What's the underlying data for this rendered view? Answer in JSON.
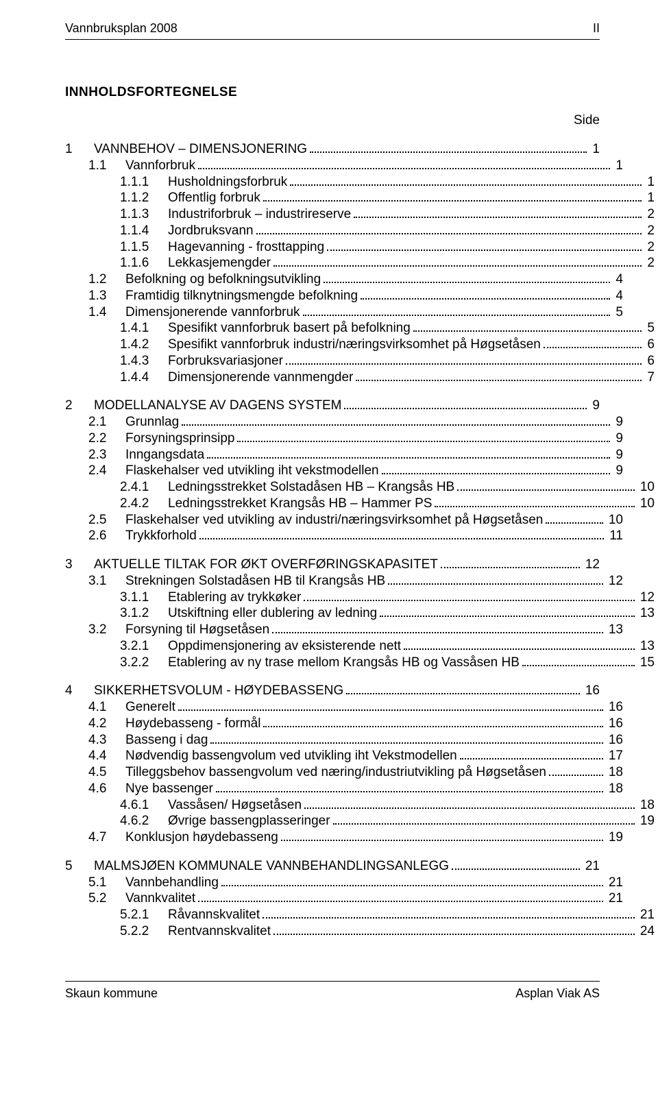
{
  "header": {
    "left": "Vannbruksplan 2008",
    "right": "II"
  },
  "titles": {
    "heading": "INNHOLDSFORTEGNELSE",
    "side": "Side"
  },
  "footer": {
    "left": "Skaun kommune",
    "right": "Asplan Viak AS"
  },
  "toc": [
    {
      "lvl": 0,
      "num": "1",
      "txt": "VANNBEHOV – DIMENSJONERING",
      "pg": "1"
    },
    {
      "lvl": 1,
      "num": "1.1",
      "txt": "Vannforbruk",
      "pg": "1"
    },
    {
      "lvl": 2,
      "num": "1.1.1",
      "txt": "Husholdningsforbruk",
      "pg": "1"
    },
    {
      "lvl": 2,
      "num": "1.1.2",
      "txt": "Offentlig forbruk",
      "pg": "1"
    },
    {
      "lvl": 2,
      "num": "1.1.3",
      "txt": "Industriforbruk – industrireserve",
      "pg": "2"
    },
    {
      "lvl": 2,
      "num": "1.1.4",
      "txt": "Jordbruksvann",
      "pg": "2"
    },
    {
      "lvl": 2,
      "num": "1.1.5",
      "txt": "Hagevanning - frosttapping",
      "pg": "2"
    },
    {
      "lvl": 2,
      "num": "1.1.6",
      "txt": "Lekkasjemengder",
      "pg": "2"
    },
    {
      "lvl": 1,
      "num": "1.2",
      "txt": "Befolkning og befolkningsutvikling",
      "pg": "4"
    },
    {
      "lvl": 1,
      "num": "1.3",
      "txt": "Framtidig tilknytningsmengde befolkning",
      "pg": "4"
    },
    {
      "lvl": 1,
      "num": "1.4",
      "txt": "Dimensjonerende vannforbruk",
      "pg": "5"
    },
    {
      "lvl": 2,
      "num": "1.4.1",
      "txt": "Spesifikt vannforbruk basert på befolkning",
      "pg": "5"
    },
    {
      "lvl": 2,
      "num": "1.4.2",
      "txt": "Spesifikt vannforbruk industri/næringsvirksomhet på Høgsetåsen",
      "pg": "6"
    },
    {
      "lvl": 2,
      "num": "1.4.3",
      "txt": "Forbruksvariasjoner",
      "pg": "6"
    },
    {
      "lvl": 2,
      "num": "1.4.4",
      "txt": "Dimensjonerende vannmengder",
      "pg": "7"
    },
    {
      "lvl": 0,
      "num": "2",
      "txt": "MODELLANALYSE AV DAGENS SYSTEM",
      "pg": "9"
    },
    {
      "lvl": 1,
      "num": "2.1",
      "txt": "Grunnlag",
      "pg": "9"
    },
    {
      "lvl": 1,
      "num": "2.2",
      "txt": "Forsyningsprinsipp",
      "pg": "9"
    },
    {
      "lvl": 1,
      "num": "2.3",
      "txt": "Inngangsdata",
      "pg": "9"
    },
    {
      "lvl": 1,
      "num": "2.4",
      "txt": "Flaskehalser ved utvikling iht vekstmodellen",
      "pg": "9"
    },
    {
      "lvl": 2,
      "num": "2.4.1",
      "txt": "Ledningsstrekket Solstadåsen HB – Krangsås HB",
      "pg": "10"
    },
    {
      "lvl": 2,
      "num": "2.4.2",
      "txt": "Ledningsstrekket Krangsås HB – Hammer PS",
      "pg": "10"
    },
    {
      "lvl": 1,
      "num": "2.5",
      "txt": "Flaskehalser ved utvikling av industri/næringsvirksomhet på Høgsetåsen",
      "pg": "10"
    },
    {
      "lvl": 1,
      "num": "2.6",
      "txt": "Trykkforhold",
      "pg": "11"
    },
    {
      "lvl": 0,
      "num": "3",
      "txt": "AKTUELLE TILTAK FOR ØKT OVERFØRINGSKAPASITET",
      "pg": "12"
    },
    {
      "lvl": 1,
      "num": "3.1",
      "txt": "Strekningen Solstadåsen HB til Krangsås HB",
      "pg": "12"
    },
    {
      "lvl": 2,
      "num": "3.1.1",
      "txt": "Etablering av trykkøker",
      "pg": "12"
    },
    {
      "lvl": 2,
      "num": "3.1.2",
      "txt": "Utskiftning eller dublering av ledning",
      "pg": "13"
    },
    {
      "lvl": 1,
      "num": "3.2",
      "txt": "Forsyning til Høgsetåsen",
      "pg": "13"
    },
    {
      "lvl": 2,
      "num": "3.2.1",
      "txt": "Oppdimensjonering av eksisterende nett",
      "pg": "13"
    },
    {
      "lvl": 2,
      "num": "3.2.2",
      "txt": "Etablering av ny trase mellom Krangsås HB og Vassåsen HB",
      "pg": "15"
    },
    {
      "lvl": 0,
      "num": "4",
      "txt": "SIKKERHETSVOLUM - HØYDEBASSENG",
      "pg": "16"
    },
    {
      "lvl": 1,
      "num": "4.1",
      "txt": "Generelt",
      "pg": "16"
    },
    {
      "lvl": 1,
      "num": "4.2",
      "txt": "Høydebasseng - formål",
      "pg": "16"
    },
    {
      "lvl": 1,
      "num": "4.3",
      "txt": "Basseng i dag",
      "pg": "16"
    },
    {
      "lvl": 1,
      "num": "4.4",
      "txt": "Nødvendig bassengvolum ved utvikling iht Vekstmodellen",
      "pg": "17"
    },
    {
      "lvl": 1,
      "num": "4.5",
      "txt": "Tilleggsbehov bassengvolum ved næring/industriutvikling på Høgsetåsen",
      "pg": "18"
    },
    {
      "lvl": 1,
      "num": "4.6",
      "txt": "Nye bassenger",
      "pg": "18"
    },
    {
      "lvl": 2,
      "num": "4.6.1",
      "txt": "Vassåsen/ Høgsetåsen",
      "pg": "18"
    },
    {
      "lvl": 2,
      "num": "4.6.2",
      "txt": "Øvrige bassengplasseringer",
      "pg": "19"
    },
    {
      "lvl": 1,
      "num": "4.7",
      "txt": "Konklusjon høydebasseng",
      "pg": "19"
    },
    {
      "lvl": 0,
      "num": "5",
      "txt": "MALMSJØEN KOMMUNALE VANNBEHANDLINGSANLEGG",
      "pg": "21"
    },
    {
      "lvl": 1,
      "num": "5.1",
      "txt": "Vannbehandling",
      "pg": "21"
    },
    {
      "lvl": 1,
      "num": "5.2",
      "txt": "Vannkvalitet",
      "pg": "21"
    },
    {
      "lvl": 2,
      "num": "5.2.1",
      "txt": "Råvannskvalitet",
      "pg": "21"
    },
    {
      "lvl": 2,
      "num": "5.2.2",
      "txt": "Rentvannskvalitet",
      "pg": "24"
    }
  ]
}
